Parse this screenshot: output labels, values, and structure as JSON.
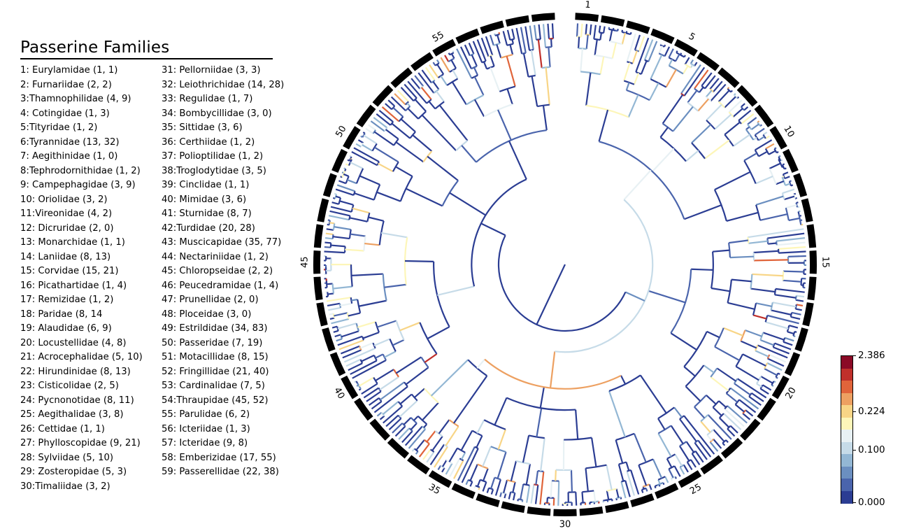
{
  "legend": {
    "title": "Passerine Families",
    "families": [
      "1: Eurylamidae (1, 1)",
      "2: Furnariidae (2, 2)",
      "3:Thamnophilidae (4, 9)",
      "4: Cotingidae (1, 3)",
      "5:Tityridae (1, 2)",
      "6:Tyrannidae (13, 32)",
      "7: Aegithinidae (1, 0)",
      "8:Tephrodornithidae (1, 2)",
      "9: Campephagidae (3, 9)",
      "10: Oriolidae (3, 2)",
      "11:Vireonidae (4, 2)",
      "12: Dicruridae (2, 0)",
      "13: Monarchidae (1, 1)",
      "14: Laniidae (8, 13)",
      "15: Corvidae (15, 21)",
      "16: Picathartidae (1, 4)",
      "17: Remizidae (1, 2)",
      "18: Paridae (8, 14",
      "19: Alaudidae (6, 9)",
      "20: Locustellidae (4, 8)",
      "21: Acrocephalidae (5, 10)",
      "22: Hirundinidae (8, 13)",
      "23: Cisticolidae (2, 5)",
      "24: Pycnonotidae (8, 11)",
      "25: Aegithalidae (3, 8)",
      "26: Cettidae (1, 1)",
      "27: Phylloscopidae (9, 21)",
      "28: Sylviidae (5, 10)",
      "29: Zosteropidae (5, 3)",
      "30:Timaliidae (3, 2)",
      "31: Pellorniidae (3, 3)",
      "32: Leiothrichidae (14, 28)",
      "33: Regulidae (1, 7)",
      "34: Bombycillidae (3, 0)",
      "35: Sittidae (3, 6)",
      "36: Certhiidae (1, 2)",
      "37: Polioptilidae (1, 2)",
      "38:Troglodytidae (3, 5)",
      "39: Cinclidae (1, 1)",
      "40: Mimidae (3, 6)",
      "41: Sturnidae (8, 7)",
      "42:Turdidae (20, 28)",
      "43: Muscicapidae (35, 77)",
      "44: Nectariniidae (1, 2)",
      "45: Chloropseidae (2, 2)",
      "46: Peucedramidae (1, 4)",
      "47: Prunellidae (2, 0)",
      "48: Ploceidae (3, 0)",
      "49: Estrildidae (34, 83)",
      "50: Passeridae (7, 19)",
      "51: Motacillidae (8, 15)",
      "52: Fringillidae (21, 40)",
      "53: Cardinalidae (7, 5)",
      "54:Thraupidae (45, 52)",
      "55: Parulidae (6, 2)",
      "56: Icteriidae (1, 3)",
      "57: Icteridae (9, 8)",
      "58: Emberizidae (17, 55)",
      "59: Passerellidae (22, 38)"
    ]
  },
  "ring_labels": [
    "1",
    "5",
    "10",
    "15",
    "20",
    "25",
    "30",
    "35",
    "40",
    "45",
    "50",
    "55"
  ],
  "ring_label_positions": [
    1,
    5,
    10,
    15,
    20,
    25,
    30,
    35,
    40,
    45,
    50,
    55
  ],
  "color_scale": {
    "labels": [
      "2.386",
      "0.224",
      "0.100",
      "0.000"
    ],
    "colors": [
      "#8b0a26",
      "#c0302b",
      "#e0643a",
      "#eda061",
      "#f8d586",
      "#fdf6b9",
      "#e8f1f4",
      "#c6dbe8",
      "#93b7d4",
      "#6b8fc0",
      "#4a64ac",
      "#2b3d93"
    ]
  }
}
